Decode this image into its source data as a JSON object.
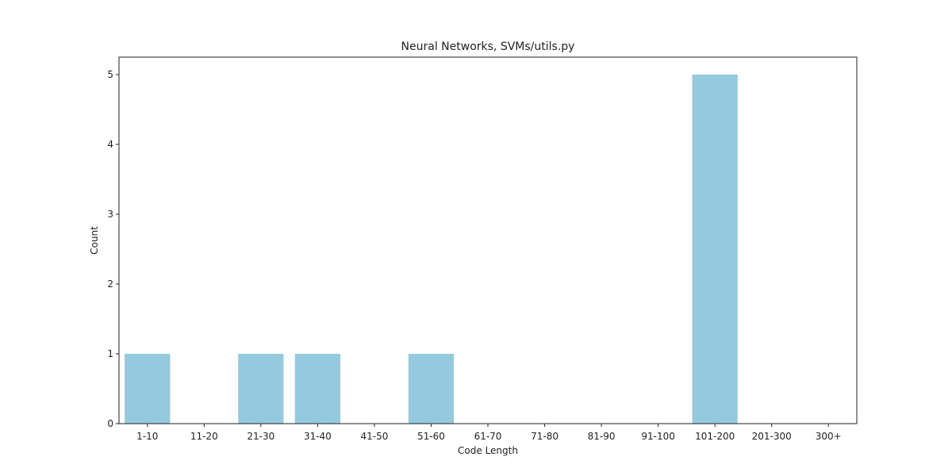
{
  "chart_data": {
    "type": "bar",
    "title": "Neural Networks, SVMs/utils.py",
    "xlabel": "Code Length",
    "ylabel": "Count",
    "categories": [
      "1-10",
      "11-20",
      "21-30",
      "31-40",
      "41-50",
      "51-60",
      "61-70",
      "71-80",
      "81-90",
      "91-100",
      "101-200",
      "201-300",
      "300+"
    ],
    "values": [
      1,
      0,
      1,
      1,
      0,
      1,
      0,
      0,
      0,
      0,
      5,
      0,
      0
    ],
    "ylim": [
      0,
      5.25
    ],
    "yticks": [
      0,
      1,
      2,
      3,
      4,
      5
    ],
    "grid": false,
    "bar_color": "#95c9de"
  }
}
